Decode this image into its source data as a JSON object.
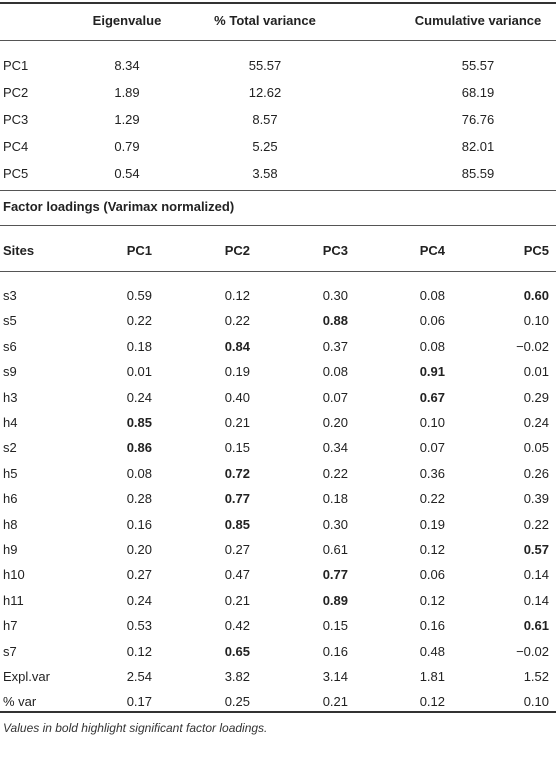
{
  "variance_table": {
    "headers": [
      "",
      "Eigenvalue",
      "% Total variance",
      "Cumulative variance"
    ],
    "rows": [
      {
        "label": "PC1",
        "values": [
          "8.34",
          "55.57",
          "55.57"
        ]
      },
      {
        "label": "PC2",
        "values": [
          "1.89",
          "12.62",
          "68.19"
        ]
      },
      {
        "label": "PC3",
        "values": [
          "1.29",
          "8.57",
          "76.76"
        ]
      },
      {
        "label": "PC4",
        "values": [
          "0.79",
          "5.25",
          "82.01"
        ]
      },
      {
        "label": "PC5",
        "values": [
          "0.54",
          "3.58",
          "85.59"
        ]
      }
    ]
  },
  "loadings_title": "Factor loadings (Varimax normalized)",
  "loadings_table": {
    "headers": [
      "Sites",
      "PC1",
      "PC2",
      "PC3",
      "PC4",
      "PC5"
    ],
    "rows": [
      {
        "label": "s3",
        "values": [
          "0.59",
          "0.12",
          "0.30",
          "0.08",
          "0.60"
        ],
        "bold": [
          false,
          false,
          false,
          false,
          true
        ]
      },
      {
        "label": "s5",
        "values": [
          "0.22",
          "0.22",
          "0.88",
          "0.06",
          "0.10"
        ],
        "bold": [
          false,
          false,
          true,
          false,
          false
        ]
      },
      {
        "label": "s6",
        "values": [
          "0.18",
          "0.84",
          "0.37",
          "0.08",
          "−0.02"
        ],
        "bold": [
          false,
          true,
          false,
          false,
          false
        ]
      },
      {
        "label": "s9",
        "values": [
          "0.01",
          "0.19",
          "0.08",
          "0.91",
          "0.01"
        ],
        "bold": [
          false,
          false,
          false,
          true,
          false
        ]
      },
      {
        "label": "h3",
        "values": [
          "0.24",
          "0.40",
          "0.07",
          "0.67",
          "0.29"
        ],
        "bold": [
          false,
          false,
          false,
          true,
          false
        ]
      },
      {
        "label": "h4",
        "values": [
          "0.85",
          "0.21",
          "0.20",
          "0.10",
          "0.24"
        ],
        "bold": [
          true,
          false,
          false,
          false,
          false
        ]
      },
      {
        "label": "s2",
        "values": [
          "0.86",
          "0.15",
          "0.34",
          "0.07",
          "0.05"
        ],
        "bold": [
          true,
          false,
          false,
          false,
          false
        ]
      },
      {
        "label": "h5",
        "values": [
          "0.08",
          "0.72",
          "0.22",
          "0.36",
          "0.26"
        ],
        "bold": [
          false,
          true,
          false,
          false,
          false
        ]
      },
      {
        "label": "h6",
        "values": [
          "0.28",
          "0.77",
          "0.18",
          "0.22",
          "0.39"
        ],
        "bold": [
          false,
          true,
          false,
          false,
          false
        ]
      },
      {
        "label": "h8",
        "values": [
          "0.16",
          "0.85",
          "0.30",
          "0.19",
          "0.22"
        ],
        "bold": [
          false,
          true,
          false,
          false,
          false
        ]
      },
      {
        "label": "h9",
        "values": [
          "0.20",
          "0.27",
          "0.61",
          "0.12",
          "0.57"
        ],
        "bold": [
          false,
          false,
          false,
          false,
          true
        ]
      },
      {
        "label": "h10",
        "values": [
          "0.27",
          "0.47",
          "0.77",
          "0.06",
          "0.14"
        ],
        "bold": [
          false,
          false,
          true,
          false,
          false
        ]
      },
      {
        "label": "h11",
        "values": [
          "0.24",
          "0.21",
          "0.89",
          "0.12",
          "0.14"
        ],
        "bold": [
          false,
          false,
          true,
          false,
          false
        ]
      },
      {
        "label": "h7",
        "values": [
          "0.53",
          "0.42",
          "0.15",
          "0.16",
          "0.61"
        ],
        "bold": [
          false,
          false,
          false,
          false,
          true
        ]
      },
      {
        "label": "s7",
        "values": [
          "0.12",
          "0.65",
          "0.16",
          "0.48",
          "−0.02"
        ],
        "bold": [
          false,
          true,
          false,
          false,
          false
        ]
      },
      {
        "label": "Expl.var",
        "values": [
          "2.54",
          "3.82",
          "3.14",
          "1.81",
          "1.52"
        ],
        "bold": [
          false,
          false,
          false,
          false,
          false
        ]
      },
      {
        "label": "% var",
        "values": [
          "0.17",
          "0.25",
          "0.21",
          "0.12",
          "0.10"
        ],
        "bold": [
          false,
          false,
          false,
          false,
          false
        ]
      }
    ]
  },
  "footnote": "Values in bold highlight significant factor loadings."
}
